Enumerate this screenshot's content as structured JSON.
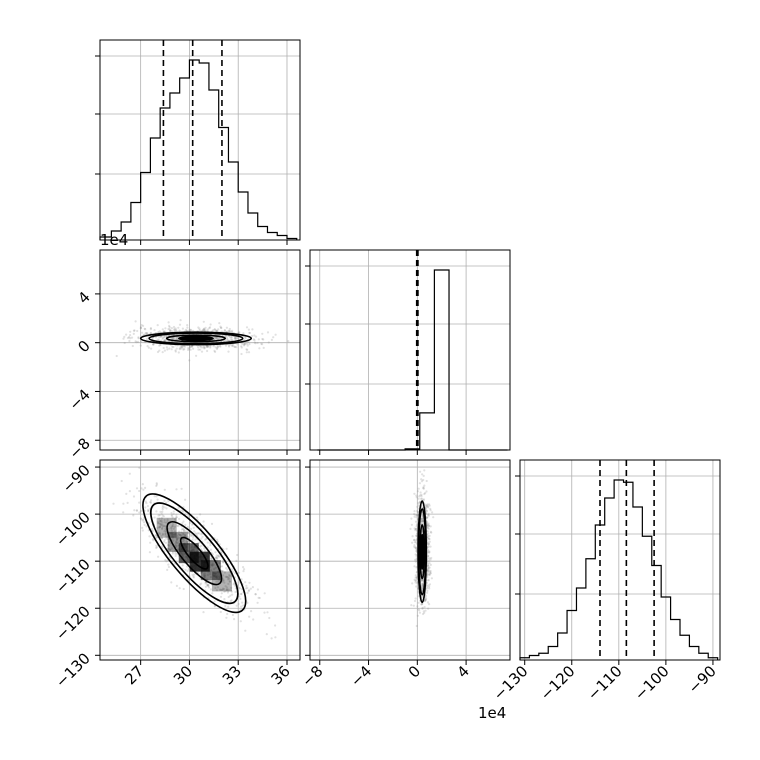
{
  "figure": {
    "offset_label_left": "1e4",
    "offset_label_bottom": "1e4"
  },
  "chart_data": {
    "type": "corner",
    "grid": true,
    "parameters": [
      {
        "index": 0,
        "range": [
          24.5,
          36.8
        ],
        "ticks": [
          27,
          30,
          33,
          36
        ],
        "tick_labels": [
          "27",
          "30",
          "33",
          "36"
        ]
      },
      {
        "index": 1,
        "range": [
          -8.8,
          7.6
        ],
        "ticks": [
          -8,
          -4,
          0,
          4
        ],
        "tick_labels": [
          "−8",
          "−4",
          "0",
          "4"
        ],
        "offset_text": "1e4"
      },
      {
        "index": 2,
        "range": [
          -131,
          -88.5
        ],
        "ticks": [
          -130,
          -120,
          -110,
          -100,
          -90
        ],
        "tick_labels": [
          "−130",
          "−120",
          "−110",
          "−100",
          "−90"
        ]
      }
    ],
    "histograms": [
      {
        "param": 0,
        "bins": [
          24.5,
          25.2,
          25.8,
          26.4,
          27.0,
          27.6,
          28.2,
          28.8,
          29.4,
          30.0,
          30.6,
          31.2,
          31.8,
          32.4,
          33.0,
          33.6,
          34.2,
          34.8,
          35.4,
          36.0,
          36.6
        ],
        "counts": [
          2,
          6,
          12,
          25,
          45,
          68,
          88,
          98,
          108,
          120,
          118,
          100,
          75,
          52,
          32,
          18,
          9,
          5,
          3,
          1
        ],
        "quantiles": [
          28.4,
          30.2,
          32.0
        ]
      },
      {
        "param": 1,
        "bins": [
          -8.2,
          -7.0,
          -5.8,
          -4.6,
          -3.4,
          -2.2,
          -1.0,
          0.2,
          1.4,
          2.6,
          3.8,
          5.0,
          6.2,
          7.4
        ],
        "counts": [
          0,
          0,
          0,
          0,
          0,
          0,
          1,
          33,
          160,
          0,
          0,
          0,
          0
        ],
        "quantiles": [
          -0.05,
          0.0,
          0.05
        ]
      },
      {
        "param": 2,
        "bins": [
          -131,
          -129,
          -127,
          -125,
          -123,
          -121,
          -119,
          -117,
          -115,
          -113,
          -111,
          -109,
          -107,
          -105,
          -103,
          -101,
          -99,
          -97,
          -95,
          -93,
          -91,
          -89
        ],
        "counts": [
          1,
          2,
          3,
          6,
          12,
          22,
          32,
          45,
          60,
          72,
          80,
          79,
          68,
          55,
          42,
          28,
          18,
          11,
          6,
          3,
          1
        ],
        "quantiles": [
          -114,
          -108.4,
          -102.5
        ]
      }
    ],
    "pairs": [
      {
        "x_param": 0,
        "y_param": 1,
        "center": [
          30.4,
          0.35
        ],
        "sx": 1.8,
        "sy": 0.45,
        "rho": -0.1
      },
      {
        "x_param": 0,
        "y_param": 2,
        "center": [
          30.3,
          -108.3
        ],
        "sx": 1.7,
        "sy": 6.0,
        "rho": -0.82
      },
      {
        "x_param": 1,
        "y_param": 2,
        "center": [
          0.4,
          -108.0
        ],
        "sx": 0.3,
        "sy": 6.0,
        "rho": 0.0
      }
    ]
  }
}
